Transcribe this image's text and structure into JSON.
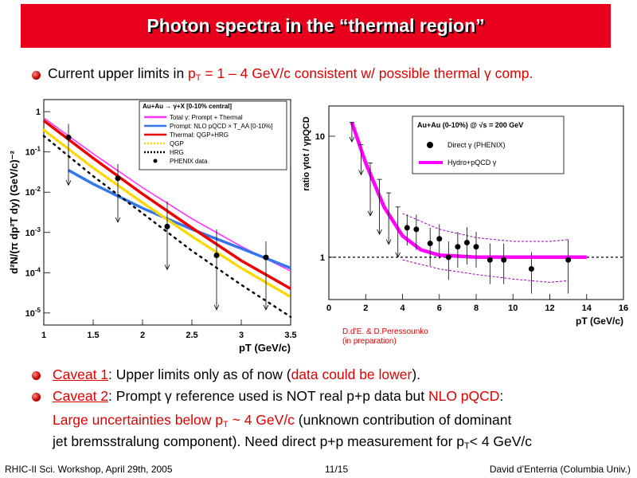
{
  "slide": {
    "title": "Photon spectra in the “thermal region”",
    "line1_prefix": "Current upper limits in ",
    "line1_pt": "p",
    "line1_pt_sub": "T",
    "line1_range": " = 1 – 4 GeV/c consistent w/ possible thermal ",
    "line1_gamma": "γ",
    "line1_suffix": " comp.",
    "caveat1_label": "Caveat 1",
    "caveat1_text": ": Upper limits only as of now (",
    "caveat1_red": "data could be lower",
    "caveat1_end": ").",
    "caveat2_label": "Caveat 2",
    "caveat2_text": ": Prompt ",
    "caveat2_gamma": "γ",
    "caveat2_text2": " reference used is NOT real p+p data but ",
    "caveat2_red": "NLO pQCD",
    "caveat2_end": ":",
    "line3_red": "Large uncertainties below p",
    "line3_red_sub": "T",
    "line3_red2": " ~ 4 GeV/c",
    "line3_rest": " (unknown contribution of dominant",
    "line4": "jet bremsstralung component). Need direct p+p measurement for p",
    "line4_sub": "T",
    "line4_end": "< 4 GeV/c",
    "credit": "D.d’E. & D.Peressounko\n(in preparation)",
    "footer_left": "RHIC-II Sci. Workshop, April 29th, 2005",
    "footer_center": "11/15",
    "footer_right": "David d’Enterria (Columbia Univ.)"
  },
  "colors": {
    "title_bg": "#e8001c",
    "accent_red": "#e00000"
  },
  "chart_data": [
    {
      "type": "line",
      "ylabel": "d²N/(π dp²_T dy) (GeV/c)⁻²",
      "xlabel": "p_T (GeV/c)",
      "xlim": [
        1,
        3.5
      ],
      "ylim_log10": [
        -5.3,
        0.3
      ],
      "log_y": true,
      "x_ticks": [
        "1",
        "1.5",
        "2",
        "2.5",
        "3",
        "3.5"
      ],
      "y_ticks": [
        {
          "label": "1",
          "exp": ""
        },
        {
          "label": "10",
          "exp": "-1"
        },
        {
          "label": "10",
          "exp": "-2"
        },
        {
          "label": "10",
          "exp": "-3"
        },
        {
          "label": "10",
          "exp": "-4"
        },
        {
          "label": "10",
          "exp": "-5"
        }
      ],
      "legend_title": "Au+Au → γ+X   [0-10% central]",
      "legend": [
        {
          "name": "Total γ: Prompt + Thermal",
          "color": "#ff33ff",
          "style": "solid"
        },
        {
          "name": "Prompt: NLO pQCD × T_AA [0-10%]",
          "color": "#3377ee",
          "style": "solid"
        },
        {
          "name": "Thermal: QGP+HRG",
          "color": "#ee0000",
          "style": "solid"
        },
        {
          "name": "QGP",
          "color": "#ffd700",
          "style": "dotted"
        },
        {
          "name": "HRG",
          "color": "#000000",
          "style": "dotted"
        },
        {
          "name": "PHENIX data",
          "color": "#000000",
          "style": "marker"
        }
      ],
      "series": [
        {
          "name": "Total γ: Prompt + Thermal",
          "color": "#ff33ff",
          "x": [
            1,
            1.5,
            2,
            2.5,
            3,
            3.5
          ],
          "y": [
            0.7,
            0.09,
            0.013,
            0.0022,
            0.00045,
            0.00011
          ]
        },
        {
          "name": "Prompt: NLO pQCD × T_AA [0-10%]",
          "color": "#3377ee",
          "x": [
            1.25,
            1.5,
            2,
            2.5,
            3,
            3.5
          ],
          "y": [
            0.035,
            0.016,
            0.004,
            0.0012,
            0.0004,
            0.00013
          ]
        },
        {
          "name": "Thermal: QGP+HRG",
          "color": "#ee0000",
          "x": [
            1,
            1.5,
            2,
            2.5,
            3,
            3.5
          ],
          "y": [
            0.6,
            0.07,
            0.009,
            0.0013,
            0.0002,
            4e-05
          ]
        },
        {
          "name": "QGP",
          "color": "#ffd700",
          "x": [
            1,
            1.5,
            2,
            2.5,
            3,
            3.5
          ],
          "y": [
            0.35,
            0.04,
            0.0055,
            0.0008,
            0.00013,
            2.5e-05
          ]
        },
        {
          "name": "HRG",
          "color": "#000000",
          "x": [
            1,
            1.5,
            2,
            2.5,
            3,
            3.5
          ],
          "y": [
            0.25,
            0.025,
            0.003,
            0.00035,
            5e-05,
            8e-06
          ]
        }
      ],
      "points": {
        "name": "PHENIX data",
        "x": [
          1.25,
          1.75,
          2.25,
          2.75,
          3.25
        ],
        "y": [
          0.23,
          0.022,
          0.0014,
          0.00027,
          0.00024
        ],
        "err_up": [
          0.5,
          0.05,
          0.006,
          0.0012,
          0.0006
        ],
        "arrow_to": [
          0.015,
          0.0018,
          0.00012,
          1.2e-05,
          1.2e-05
        ]
      }
    },
    {
      "type": "line",
      "ylabel": "ratio γ_tot / γ_pQCD",
      "xlabel": "p_T (GeV/c)",
      "xlim": [
        0,
        16
      ],
      "ylim_log10": [
        -0.35,
        1.25
      ],
      "log_y": true,
      "x_ticks": [
        "0",
        "2",
        "4",
        "6",
        "8",
        "10",
        "12",
        "14",
        "16"
      ],
      "y_ticks": [
        "1",
        "10"
      ],
      "legend_title": "Au+Au (0-10%) @ √s = 200 GeV",
      "legend": [
        {
          "name": "Direct γ (PHENIX)",
          "color": "#000000",
          "style": "marker"
        },
        {
          "name": "Hydro+pQCD γ",
          "color": "#ff00ff",
          "style": "solid"
        }
      ],
      "series": [
        {
          "name": "Hydro+pQCD γ",
          "color": "#ff00ff",
          "x": [
            1.25,
            2,
            3,
            4,
            5,
            6,
            8,
            10,
            12,
            14
          ],
          "y": [
            13,
            6,
            2.6,
            1.5,
            1.15,
            1.04,
            1.0,
            1.0,
            1.0,
            1.0
          ]
        }
      ],
      "points": {
        "name": "Direct γ (PHENIX)",
        "x": [
          4.25,
          4.75,
          5.5,
          6.0,
          6.5,
          7.0,
          7.5,
          8.0,
          8.75,
          9.5,
          11,
          13
        ],
        "y": [
          1.75,
          1.7,
          1.3,
          1.42,
          1.0,
          1.22,
          1.32,
          1.22,
          0.95,
          0.95,
          0.8,
          0.95
        ],
        "err": [
          0.5,
          0.55,
          0.45,
          0.45,
          0.35,
          0.4,
          0.45,
          0.4,
          0.35,
          0.35,
          0.3,
          0.45
        ],
        "upper_limits": [
          {
            "x": 1.25,
            "y": 13,
            "to": 9
          },
          {
            "x": 1.75,
            "y": 8.5,
            "to": 4.8
          },
          {
            "x": 2.25,
            "y": 6,
            "to": 2.2
          },
          {
            "x": 2.75,
            "y": 4.4,
            "to": 1.55
          },
          {
            "x": 3.25,
            "y": 3.4,
            "to": 1.28
          },
          {
            "x": 3.75,
            "y": 2.6,
            "to": 1.0
          }
        ],
        "band_upper": {
          "x": [
            4,
            6,
            8,
            10,
            12,
            13
          ],
          "y": [
            2.3,
            1.7,
            1.45,
            1.35,
            1.35,
            1.4
          ]
        },
        "band_lower": {
          "x": [
            4,
            6,
            8,
            10,
            12,
            13
          ],
          "y": [
            0.95,
            0.8,
            0.72,
            0.66,
            0.62,
            0.64
          ]
        }
      },
      "reference_line": 1
    }
  ]
}
